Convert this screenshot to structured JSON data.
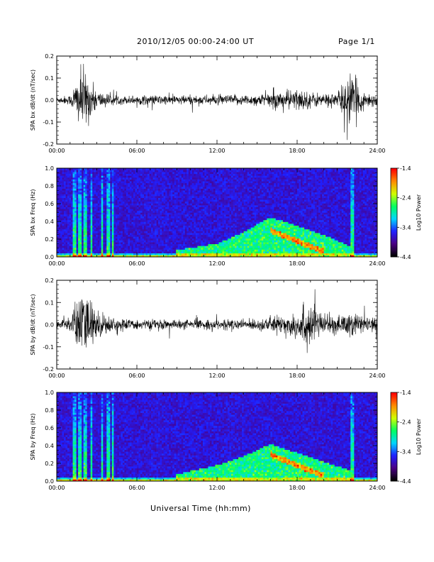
{
  "header": {
    "date_range": "2010/12/05  00:00-24:00 UT",
    "page": "Page 1/1"
  },
  "xaxis_title": "Universal Time (hh:mm)",
  "chart_data": [
    {
      "type": "line",
      "ylabel": "SPA bx dB/dt (nT/sec)",
      "xlim": [
        "00:00",
        "24:00"
      ],
      "ylim": [
        -0.2,
        0.2
      ],
      "x_ticks": [
        "00:00",
        "06:00",
        "12:00",
        "18:00",
        "24:00"
      ],
      "y_ticks": [
        "-0.2",
        "-0.1",
        "0.0",
        "0.1",
        "0.2"
      ],
      "amplitude_profile_hours": [
        0,
        1,
        1.5,
        2,
        2.5,
        3,
        4,
        5,
        6,
        9,
        12,
        15,
        17,
        18,
        19,
        20,
        21,
        22,
        23,
        24
      ],
      "amplitude_profile_nT_s": [
        0.02,
        0.03,
        0.14,
        0.2,
        0.12,
        0.06,
        0.035,
        0.025,
        0.03,
        0.03,
        0.03,
        0.035,
        0.06,
        0.07,
        0.05,
        0.04,
        0.05,
        0.17,
        0.05,
        0.04
      ],
      "series_color": "#000000"
    },
    {
      "type": "heatmap",
      "ylabel": "SPA bx Freq (Hz)",
      "xlim": [
        "00:00",
        "24:00"
      ],
      "ylim": [
        0.0,
        1.0
      ],
      "x_ticks": [
        "00:00",
        "06:00",
        "12:00",
        "18:00",
        "24:00"
      ],
      "y_ticks": [
        "0.0",
        "0.2",
        "0.4",
        "0.6",
        "0.8",
        "1.0"
      ],
      "colorbar_label": "Log10 Power",
      "colorbar_ticks": [
        "-1.4",
        "-2.4",
        "-3.4",
        "-4.4"
      ],
      "colorbar_range": [
        -4.4,
        -1.4
      ],
      "emission_band_hours": [
        9,
        12,
        14,
        16,
        18,
        20,
        22
      ],
      "emission_band_upper_Hz": [
        0.08,
        0.15,
        0.28,
        0.45,
        0.35,
        0.25,
        0.12
      ]
    },
    {
      "type": "line",
      "ylabel": "SPA by dB/dt (nT/sec)",
      "xlim": [
        "00:00",
        "24:00"
      ],
      "ylim": [
        -0.2,
        0.2
      ],
      "x_ticks": [
        "00:00",
        "06:00",
        "12:00",
        "18:00",
        "24:00"
      ],
      "y_ticks": [
        "-0.2",
        "-0.1",
        "0.0",
        "0.1",
        "0.2"
      ],
      "amplitude_profile_hours": [
        0,
        1,
        1.5,
        2,
        2.5,
        3,
        4,
        5,
        6,
        9,
        12,
        15,
        17,
        18,
        19,
        20,
        21,
        22,
        23,
        24
      ],
      "amplitude_profile_nT_s": [
        0.03,
        0.05,
        0.16,
        0.2,
        0.17,
        0.09,
        0.05,
        0.035,
        0.03,
        0.03,
        0.03,
        0.035,
        0.06,
        0.09,
        0.15,
        0.06,
        0.05,
        0.09,
        0.05,
        0.04
      ],
      "series_color": "#000000"
    },
    {
      "type": "heatmap",
      "ylabel": "SPA by Freq (Hz)",
      "xlim": [
        "00:00",
        "24:00"
      ],
      "ylim": [
        0.0,
        1.0
      ],
      "x_ticks": [
        "00:00",
        "06:00",
        "12:00",
        "18:00",
        "24:00"
      ],
      "y_ticks": [
        "0.0",
        "0.2",
        "0.4",
        "0.6",
        "0.8",
        "1.0"
      ],
      "colorbar_label": "Log10 Power",
      "colorbar_ticks": [
        "-1.4",
        "-2.4",
        "-3.4",
        "-4.4"
      ],
      "colorbar_range": [
        -4.4,
        -1.4
      ],
      "emission_band_hours": [
        9,
        12,
        14,
        16,
        18,
        20,
        22
      ],
      "emission_band_upper_Hz": [
        0.08,
        0.18,
        0.28,
        0.42,
        0.32,
        0.22,
        0.12
      ]
    }
  ],
  "colors": {
    "axis": "#000000",
    "colormap": [
      "#000000",
      "#4b0082",
      "#1f1fff",
      "#00d5ff",
      "#00ff60",
      "#d0ff00",
      "#ff8c00",
      "#ff0000"
    ]
  }
}
